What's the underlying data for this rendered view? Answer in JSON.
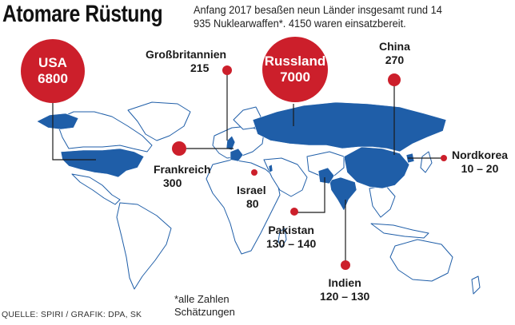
{
  "header": {
    "title": "Atomare Rüstung",
    "subtitle": "Anfang 2017 besaßen neun Länder insgesamt rund 14 935 Nuklearwaffen*. 4150 waren einsatzbereit."
  },
  "countries": {
    "usa": {
      "name": "USA",
      "value": "6800"
    },
    "russland": {
      "name": "Russland",
      "value": "7000"
    },
    "grossbritannien": {
      "name": "Großbritannien",
      "value": "215"
    },
    "china": {
      "name": "China",
      "value": "270"
    },
    "frankreich": {
      "name": "Frankreich",
      "value": "300"
    },
    "israel": {
      "name": "Israel",
      "value": "80"
    },
    "nordkorea": {
      "name": "Nordkorea",
      "value": "10 – 20"
    },
    "pakistan": {
      "name": "Pakistan",
      "value": "130 – 140"
    },
    "indien": {
      "name": "Indien",
      "value": "120 – 130"
    }
  },
  "footnote": "*alle Zahlen Schätzungen",
  "source": "QUELLE: SPIRI / GRAFIK: DPA, SK",
  "colors": {
    "highlight": "#1f5ea8",
    "land": "#ffffff",
    "border": "#1f5ea8",
    "bubble": "#cc1f2b"
  }
}
